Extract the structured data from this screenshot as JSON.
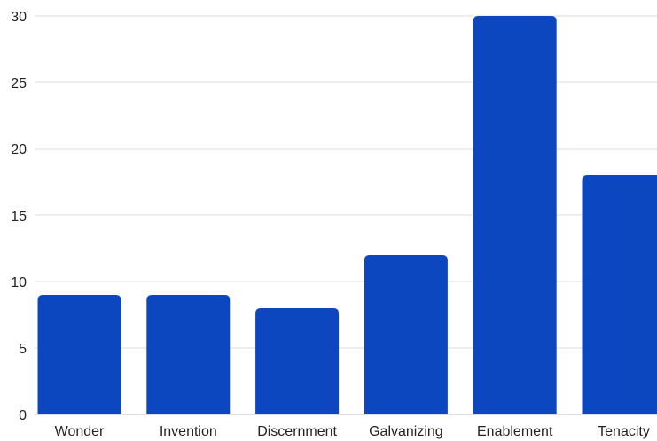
{
  "chart_data": {
    "type": "bar",
    "title": "",
    "xlabel": "",
    "ylabel": "",
    "categories": [
      "Wonder",
      "Invention",
      "Discernment",
      "Galvanizing",
      "Enablement",
      "Tenacity"
    ],
    "values": [
      9,
      9,
      8,
      12,
      30,
      18
    ],
    "ylim": [
      0,
      30
    ],
    "yticks": [
      0,
      5,
      10,
      15,
      20,
      25,
      30
    ],
    "grid": true,
    "legend": "none",
    "colors": {
      "bar": "#0d47bf",
      "grid": "#dcdcdc",
      "axis": "#bdbdbd",
      "text": "#222222"
    }
  }
}
